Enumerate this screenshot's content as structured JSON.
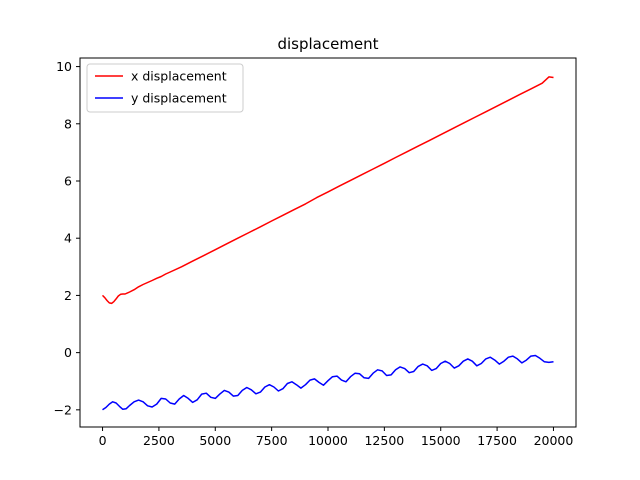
{
  "chart_data": {
    "type": "line",
    "title": "displacement",
    "xlabel": "",
    "ylabel": "",
    "xlim": [
      -1000,
      21000
    ],
    "ylim": [
      -2.6,
      10.3
    ],
    "x_ticks": [
      0,
      2500,
      5000,
      7500,
      10000,
      12500,
      15000,
      17500,
      20000
    ],
    "y_ticks": [
      -2,
      0,
      2,
      4,
      6,
      8,
      10
    ],
    "legend": {
      "position": "top-left"
    },
    "grid": false,
    "series": [
      {
        "name": "x displacement",
        "color": "#ff0000",
        "x": [
          0,
          100,
          200,
          300,
          400,
          500,
          600,
          700,
          800,
          900,
          1000,
          1200,
          1400,
          1600,
          1800,
          2000,
          2200,
          2400,
          2600,
          2800,
          3000,
          3500,
          4000,
          4500,
          5000,
          5500,
          6000,
          6500,
          7000,
          7500,
          8000,
          8500,
          9000,
          9500,
          10000,
          10500,
          11000,
          11500,
          12000,
          12500,
          13000,
          13500,
          14000,
          14500,
          15000,
          15500,
          16000,
          16500,
          17000,
          17500,
          18000,
          18500,
          19000,
          19500,
          19800,
          20000
        ],
        "y": [
          2.0,
          1.92,
          1.82,
          1.74,
          1.72,
          1.78,
          1.88,
          1.98,
          2.04,
          2.05,
          2.05,
          2.12,
          2.2,
          2.3,
          2.38,
          2.45,
          2.52,
          2.6,
          2.66,
          2.75,
          2.82,
          3.0,
          3.2,
          3.4,
          3.6,
          3.8,
          4.0,
          4.2,
          4.4,
          4.6,
          4.8,
          5.0,
          5.2,
          5.42,
          5.62,
          5.82,
          6.02,
          6.22,
          6.42,
          6.62,
          6.82,
          7.02,
          7.22,
          7.42,
          7.62,
          7.82,
          8.02,
          8.22,
          8.42,
          8.62,
          8.82,
          9.02,
          9.22,
          9.42,
          9.64,
          9.62
        ]
      },
      {
        "name": "y displacement",
        "color": "#0000ff",
        "x": [
          0,
          150,
          300,
          450,
          600,
          750,
          900,
          1050,
          1200,
          1400,
          1600,
          1800,
          2000,
          2200,
          2400,
          2600,
          2800,
          3000,
          3200,
          3400,
          3600,
          3800,
          4000,
          4200,
          4400,
          4600,
          4800,
          5000,
          5200,
          5400,
          5600,
          5800,
          6000,
          6200,
          6400,
          6600,
          6800,
          7000,
          7200,
          7400,
          7600,
          7800,
          8000,
          8200,
          8400,
          8600,
          8800,
          9000,
          9200,
          9400,
          9600,
          9800,
          10000,
          10200,
          10400,
          10600,
          10800,
          11000,
          11200,
          11400,
          11600,
          11800,
          12000,
          12200,
          12400,
          12600,
          12800,
          13000,
          13200,
          13400,
          13600,
          13800,
          14000,
          14200,
          14400,
          14600,
          14800,
          15000,
          15200,
          15400,
          15600,
          15800,
          16000,
          16200,
          16400,
          16600,
          16800,
          17000,
          17200,
          17400,
          17600,
          17800,
          18000,
          18200,
          18400,
          18600,
          18800,
          19000,
          19200,
          19400,
          19600,
          19800,
          20000
        ],
        "y": [
          -2.0,
          -1.92,
          -1.8,
          -1.72,
          -1.76,
          -1.88,
          -1.98,
          -1.96,
          -1.85,
          -1.72,
          -1.66,
          -1.72,
          -1.86,
          -1.9,
          -1.8,
          -1.6,
          -1.62,
          -1.76,
          -1.8,
          -1.62,
          -1.5,
          -1.6,
          -1.74,
          -1.65,
          -1.45,
          -1.42,
          -1.56,
          -1.6,
          -1.45,
          -1.32,
          -1.38,
          -1.52,
          -1.5,
          -1.32,
          -1.22,
          -1.3,
          -1.44,
          -1.38,
          -1.2,
          -1.12,
          -1.2,
          -1.34,
          -1.26,
          -1.08,
          -1.02,
          -1.12,
          -1.24,
          -1.12,
          -0.96,
          -0.92,
          -1.04,
          -1.14,
          -0.98,
          -0.84,
          -0.82,
          -0.96,
          -1.02,
          -0.84,
          -0.72,
          -0.74,
          -0.88,
          -0.9,
          -0.72,
          -0.6,
          -0.64,
          -0.8,
          -0.78,
          -0.6,
          -0.5,
          -0.56,
          -0.7,
          -0.66,
          -0.48,
          -0.4,
          -0.46,
          -0.62,
          -0.56,
          -0.38,
          -0.3,
          -0.38,
          -0.54,
          -0.46,
          -0.3,
          -0.22,
          -0.3,
          -0.46,
          -0.38,
          -0.22,
          -0.16,
          -0.26,
          -0.4,
          -0.3,
          -0.16,
          -0.12,
          -0.22,
          -0.36,
          -0.26,
          -0.12,
          -0.1,
          -0.2,
          -0.32,
          -0.34,
          -0.32
        ]
      }
    ]
  }
}
